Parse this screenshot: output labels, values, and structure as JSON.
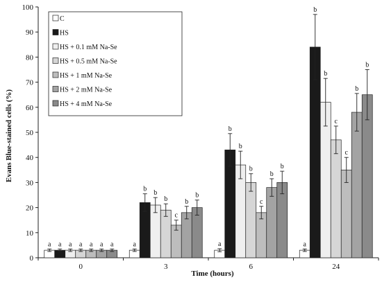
{
  "chart_data": {
    "type": "bar",
    "xlabel": "Time (hours)",
    "ylabel": "Evans Blue-stained cells (%)",
    "ylim": [
      0,
      100
    ],
    "yticks": [
      0,
      10,
      20,
      30,
      40,
      50,
      60,
      70,
      80,
      90,
      100
    ],
    "categories": [
      "0",
      "3",
      "6",
      "24"
    ],
    "grid": false,
    "legend_position": "top-left",
    "series": [
      {
        "name": "C",
        "color": "#ffffff",
        "values": [
          3,
          3,
          3,
          3
        ],
        "errors": [
          0.5,
          0.5,
          0.6,
          0.5
        ],
        "labels": [
          "a",
          "a",
          "a",
          "a"
        ]
      },
      {
        "name": "HS",
        "color": "#1a1a1a",
        "values": [
          3,
          22,
          43,
          84
        ],
        "errors": [
          0.5,
          3.5,
          6.5,
          13
        ],
        "labels": [
          "a",
          "b",
          "b",
          "b"
        ]
      },
      {
        "name": "HS + 0.1 mM Na-Se",
        "color": "#efefef",
        "values": [
          3,
          21,
          37,
          62
        ],
        "errors": [
          0.5,
          3,
          5.5,
          9.5
        ],
        "labels": [
          "a",
          "b",
          "b",
          "b"
        ]
      },
      {
        "name": "HS + 0.5 mM Na-Se",
        "color": "#d6d6d6",
        "values": [
          3,
          19,
          30,
          47
        ],
        "errors": [
          0.5,
          2.5,
          3.5,
          5.5
        ],
        "labels": [
          "a",
          "b",
          "b",
          "c"
        ]
      },
      {
        "name": "HS + 1 mM Na-Se",
        "color": "#bdbdbd",
        "values": [
          3,
          13,
          18,
          35
        ],
        "errors": [
          0.5,
          2,
          2.5,
          5
        ],
        "labels": [
          "a",
          "c",
          "c",
          "c"
        ]
      },
      {
        "name": "HS + 2 mM Na-Se",
        "color": "#a3a3a3",
        "values": [
          3,
          18,
          28,
          58
        ],
        "errors": [
          0.5,
          2.5,
          3.5,
          7.5
        ],
        "labels": [
          "a",
          "b",
          "b",
          "b"
        ]
      },
      {
        "name": "HS + 4 mM Na-Se",
        "color": "#8a8a8a",
        "values": [
          3,
          20,
          30,
          65
        ],
        "errors": [
          0.5,
          3,
          4.5,
          10
        ],
        "labels": [
          "a",
          "b",
          "b",
          "b"
        ]
      }
    ]
  }
}
